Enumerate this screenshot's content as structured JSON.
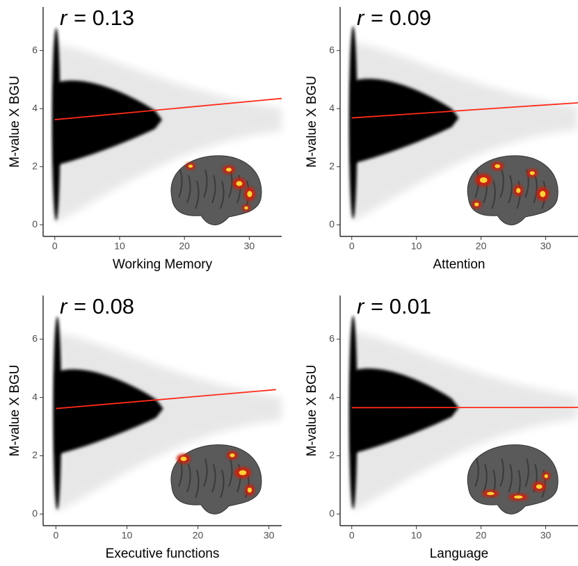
{
  "chart_data": [
    {
      "type": "scatter",
      "annotation_symbol": "r",
      "annotation": "= 0.13",
      "x_label": "Working Memory",
      "y_label": "M-value X BGU",
      "xlim": [
        -1.8,
        35
      ],
      "ylim": [
        -0.4,
        7.5
      ],
      "xticks": [
        0,
        10,
        20,
        30
      ],
      "yticks": [
        0,
        2,
        4,
        6
      ],
      "fit": {
        "x": [
          0,
          35
        ],
        "y": [
          3.62,
          4.35
        ],
        "color": "#ff2a1a"
      }
    },
    {
      "type": "scatter",
      "annotation_symbol": "r",
      "annotation": "= 0.09",
      "x_label": "Attention",
      "y_label": "M-value X BGU",
      "xlim": [
        -1.8,
        35
      ],
      "ylim": [
        -0.4,
        7.5
      ],
      "xticks": [
        0,
        10,
        20,
        30
      ],
      "yticks": [
        0,
        2,
        4,
        6
      ],
      "fit": {
        "x": [
          0,
          35
        ],
        "y": [
          3.68,
          4.2
        ],
        "color": "#ff2a1a"
      }
    },
    {
      "type": "scatter",
      "annotation_symbol": "r",
      "annotation": "= 0.08",
      "x_label": "Executive functions",
      "y_label": "M-value X BGU",
      "xlim": [
        -1.8,
        31.8
      ],
      "ylim": [
        -0.4,
        7.5
      ],
      "xticks": [
        0,
        10,
        20,
        30
      ],
      "yticks": [
        0,
        2,
        4,
        6
      ],
      "fit": {
        "x": [
          0,
          31
        ],
        "y": [
          3.62,
          4.27
        ],
        "color": "#ff2a1a"
      }
    },
    {
      "type": "scatter",
      "annotation_symbol": "r",
      "annotation": "= 0.01",
      "x_label": "Language",
      "y_label": "M-value X BGU",
      "xlim": [
        -1.8,
        35
      ],
      "ylim": [
        -0.4,
        7.5
      ],
      "xticks": [
        0,
        10,
        20,
        30
      ],
      "yticks": [
        0,
        2,
        4,
        6
      ],
      "fit": {
        "x": [
          0,
          35
        ],
        "y": [
          3.65,
          3.66
        ],
        "color": "#ff2a1a"
      }
    }
  ]
}
